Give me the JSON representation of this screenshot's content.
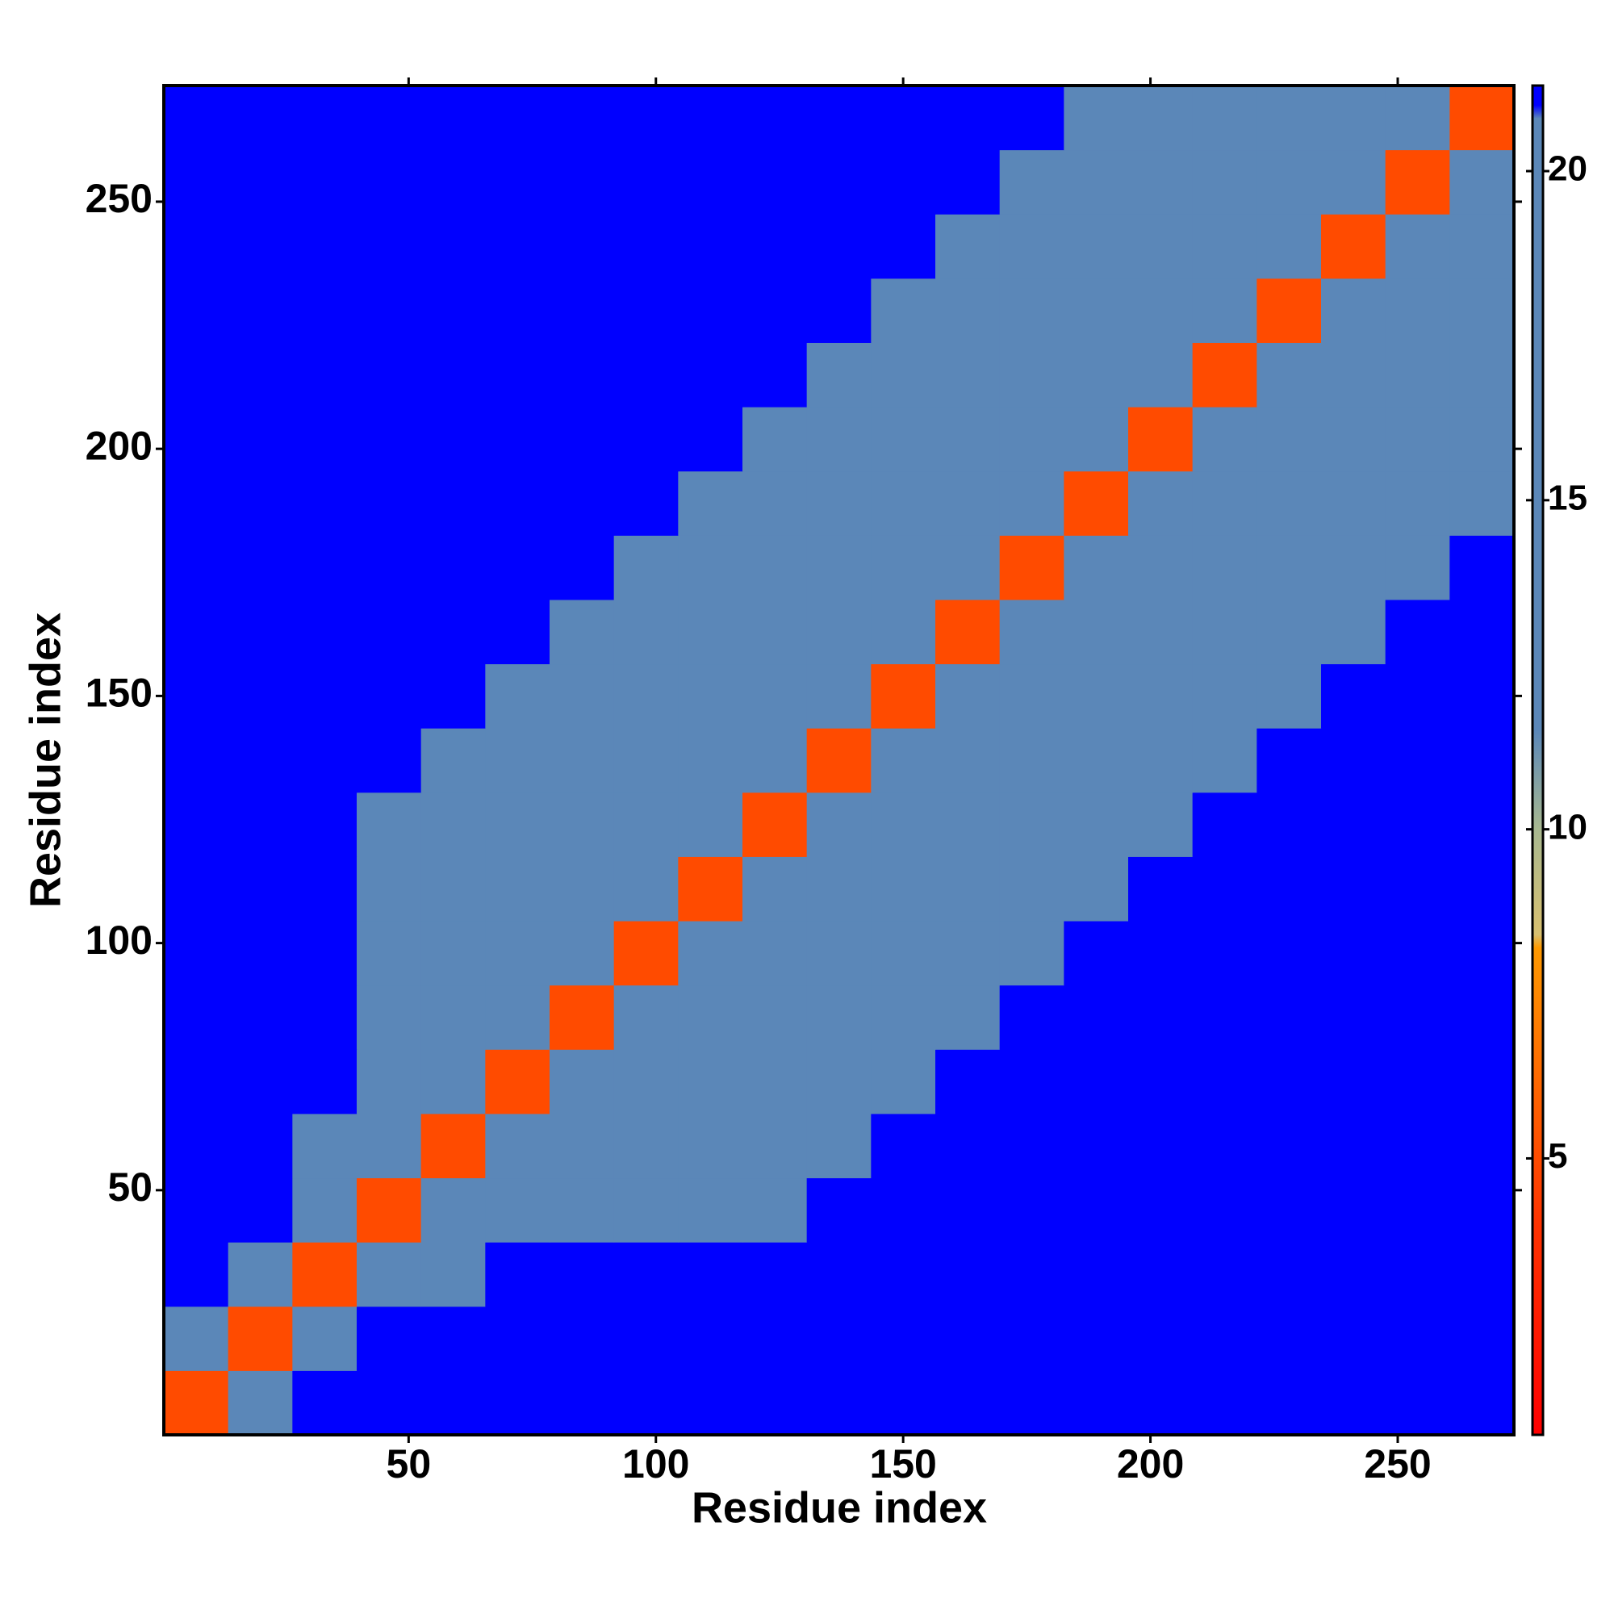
{
  "chart_data": {
    "type": "heatmap",
    "xlabel": "Residue index",
    "ylabel": "Residue index",
    "x": [
      7,
      20,
      33,
      46,
      59,
      72,
      85,
      98,
      111,
      124,
      137,
      150,
      163,
      176,
      189,
      202,
      215,
      228,
      241,
      254,
      267
    ],
    "y": [
      7,
      20,
      33,
      46,
      59,
      72,
      85,
      98,
      111,
      124,
      137,
      150,
      163,
      176,
      189,
      202,
      215,
      228,
      241,
      254,
      267
    ],
    "values": [
      [
        5,
        18,
        21.3,
        21.3,
        21.3,
        21.3,
        21.3,
        21.3,
        21.3,
        21.3,
        21.3,
        21.3,
        21.3,
        21.3,
        21.3,
        21.3,
        21.3,
        21.3,
        21.3,
        21.3,
        21.3
      ],
      [
        18,
        5,
        18,
        21.3,
        21.3,
        21.3,
        21.3,
        21.3,
        21.3,
        21.3,
        21.3,
        21.3,
        21.3,
        21.3,
        21.3,
        21.3,
        21.3,
        21.3,
        21.3,
        21.3,
        21.3
      ],
      [
        21.3,
        18,
        5,
        18,
        19,
        21.3,
        21.3,
        21.3,
        21.3,
        21.3,
        21.3,
        21.3,
        21.3,
        21.3,
        21.3,
        21.3,
        21.3,
        21.3,
        21.3,
        21.3,
        21.3
      ],
      [
        21.3,
        21.3,
        18,
        5,
        12,
        16,
        16,
        16,
        18,
        19.5,
        21.3,
        21.3,
        21.3,
        21.3,
        21.3,
        21.3,
        21.3,
        21.3,
        21.3,
        21.3,
        21.3
      ],
      [
        21.3,
        21.3,
        19,
        12,
        5,
        12,
        16,
        16,
        16,
        18,
        19.5,
        21.3,
        21.3,
        21.3,
        21.3,
        21.3,
        21.3,
        21.3,
        21.3,
        21.3,
        21.3
      ],
      [
        21.3,
        21.3,
        21.3,
        16,
        12,
        5,
        12,
        16,
        16,
        16,
        18,
        19.5,
        21.3,
        21.3,
        21.3,
        21.3,
        21.3,
        21.3,
        21.3,
        21.3,
        21.3
      ],
      [
        21.3,
        21.3,
        21.3,
        16,
        16,
        12,
        5,
        12,
        16,
        16,
        16,
        18,
        19.5,
        21.3,
        21.3,
        21.3,
        21.3,
        21.3,
        21.3,
        21.3,
        21.3
      ],
      [
        21.3,
        21.3,
        21.3,
        16,
        16,
        16,
        12,
        5,
        12,
        16,
        16,
        16,
        18,
        19.5,
        21.3,
        21.3,
        21.3,
        21.3,
        21.3,
        21.3,
        21.3
      ],
      [
        21.3,
        21.3,
        21.3,
        18,
        16,
        16,
        16,
        12,
        5,
        12,
        16,
        16,
        16,
        18,
        19.5,
        21.3,
        21.3,
        21.3,
        21.3,
        21.3,
        21.3
      ],
      [
        21.3,
        21.3,
        21.3,
        19.5,
        18,
        16,
        16,
        16,
        12,
        5,
        12,
        16,
        16,
        16,
        18,
        19.5,
        21.3,
        21.3,
        21.3,
        21.3,
        21.3
      ],
      [
        21.3,
        21.3,
        21.3,
        21.3,
        19.5,
        18,
        16,
        16,
        16,
        12,
        5,
        12,
        16,
        16,
        16,
        18,
        19.5,
        21.3,
        21.3,
        21.3,
        21.3
      ],
      [
        21.3,
        21.3,
        21.3,
        21.3,
        21.3,
        19.5,
        18,
        16,
        16,
        16,
        12,
        5,
        12,
        16,
        16,
        16,
        18,
        19.5,
        21.3,
        21.3,
        21.3
      ],
      [
        21.3,
        21.3,
        21.3,
        21.3,
        21.3,
        21.3,
        19.5,
        18,
        16,
        16,
        16,
        12,
        5,
        12,
        16,
        16,
        16,
        18,
        19.5,
        21.3,
        21.3
      ],
      [
        21.3,
        21.3,
        21.3,
        21.3,
        21.3,
        21.3,
        21.3,
        19.5,
        18,
        16,
        16,
        16,
        12,
        5,
        12,
        16,
        16,
        16,
        18,
        19.5,
        21.3
      ],
      [
        21.3,
        21.3,
        21.3,
        21.3,
        21.3,
        21.3,
        21.3,
        21.3,
        19.5,
        18,
        16,
        16,
        16,
        12,
        5,
        12,
        16,
        16,
        16,
        18,
        19.5
      ],
      [
        21.3,
        21.3,
        21.3,
        21.3,
        21.3,
        21.3,
        21.3,
        21.3,
        21.3,
        19.5,
        18,
        16,
        16,
        16,
        12,
        5,
        12,
        16,
        16,
        16,
        18
      ],
      [
        21.3,
        21.3,
        21.3,
        21.3,
        21.3,
        21.3,
        21.3,
        21.3,
        21.3,
        21.3,
        19.5,
        18,
        16,
        16,
        16,
        12,
        5,
        12,
        16,
        16,
        16
      ],
      [
        21.3,
        21.3,
        21.3,
        21.3,
        21.3,
        21.3,
        21.3,
        21.3,
        21.3,
        21.3,
        21.3,
        19.5,
        18,
        16,
        16,
        16,
        12,
        5,
        12,
        16,
        16
      ],
      [
        21.3,
        21.3,
        21.3,
        21.3,
        21.3,
        21.3,
        21.3,
        21.3,
        21.3,
        21.3,
        21.3,
        21.3,
        19.5,
        18,
        16,
        16,
        16,
        12,
        5,
        12,
        16
      ],
      [
        21.3,
        21.3,
        21.3,
        21.3,
        21.3,
        21.3,
        21.3,
        21.3,
        21.3,
        21.3,
        21.3,
        21.3,
        21.3,
        19.5,
        18,
        16,
        16,
        16,
        12,
        5,
        12
      ],
      [
        21.3,
        21.3,
        21.3,
        21.3,
        21.3,
        21.3,
        21.3,
        21.3,
        21.3,
        21.3,
        21.3,
        21.3,
        21.3,
        21.3,
        19.5,
        18,
        16,
        16,
        16,
        12,
        5
      ]
    ],
    "xlim": [
      0.5,
      273.5
    ],
    "ylim": [
      0.5,
      273.5
    ],
    "xticks": [
      50,
      100,
      150,
      200,
      250
    ],
    "yticks": [
      50,
      100,
      150,
      200,
      250
    ],
    "clim": [
      0.8,
      21.3
    ],
    "cticks": [
      5,
      10,
      15,
      20
    ],
    "colorscale": [
      [
        0.8,
        "#ff0000"
      ],
      [
        4,
        "#ff3300"
      ],
      [
        8.2,
        "#ff9900"
      ],
      [
        8.4,
        "#d8c070"
      ],
      [
        10,
        "#a8b890"
      ],
      [
        11.5,
        "#5b87b8"
      ],
      [
        20.8,
        "#5b87b8"
      ],
      [
        21,
        "#0000ff"
      ]
    ]
  }
}
